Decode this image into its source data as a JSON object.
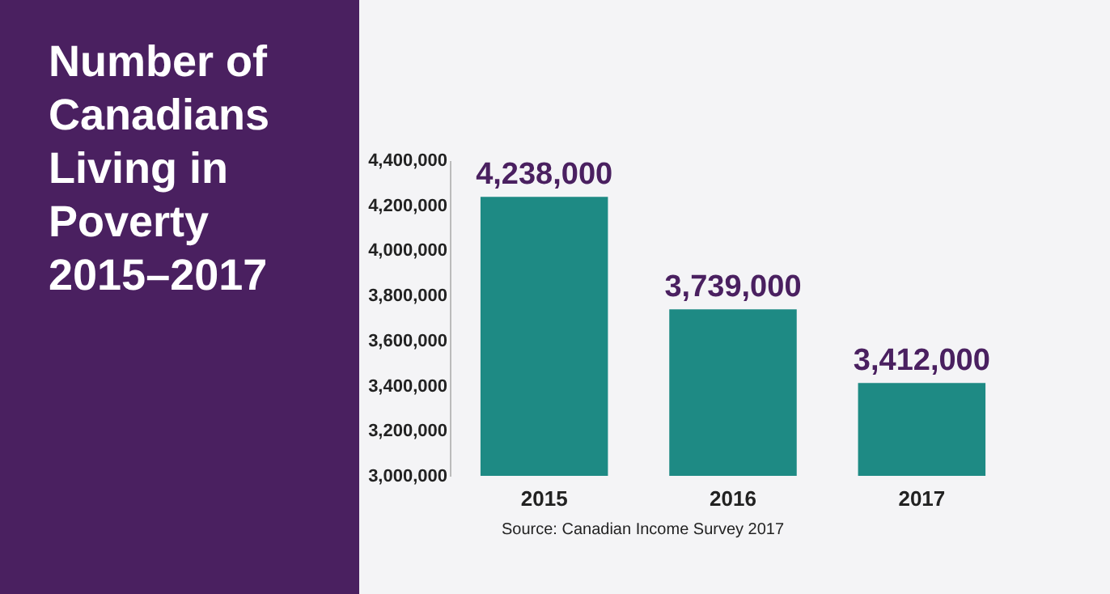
{
  "chart_data": {
    "type": "bar",
    "title": "Number of Canadians Living in Poverty 2015–2017",
    "categories": [
      "2015",
      "2016",
      "2017"
    ],
    "values": [
      4238000,
      3739000,
      3412000
    ],
    "value_labels": [
      "4,238,000",
      "3,739,000",
      "3,412,000"
    ],
    "color": "#1e8a84",
    "ylim": [
      3000000,
      4400000
    ],
    "yticks": [
      {
        "value": 3000000,
        "label": "3,000,000"
      },
      {
        "value": 3200000,
        "label": "3,200,000"
      },
      {
        "value": 3400000,
        "label": "3,400,000"
      },
      {
        "value": 3600000,
        "label": "3,600,000"
      },
      {
        "value": 3800000,
        "label": "3,800,000"
      },
      {
        "value": 4000000,
        "label": "4,000,000"
      },
      {
        "value": 4200000,
        "label": "4,200,000"
      },
      {
        "value": 4400000,
        "label": "4,400,000"
      }
    ],
    "data_labels": true,
    "annotations": [
      "Source: Canadian Income Survey 2017"
    ]
  }
}
